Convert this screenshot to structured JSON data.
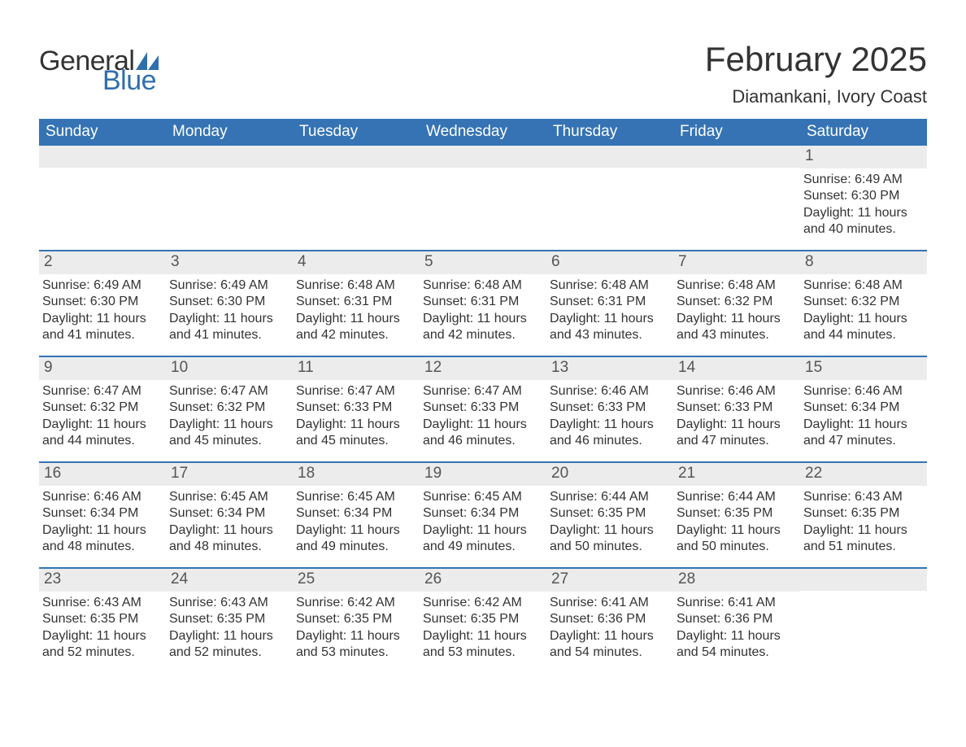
{
  "logo": {
    "word1": "General",
    "word2": "Blue",
    "word1_color": "#333333",
    "word2_color": "#2f6fad",
    "icon_color": "#2f6fad"
  },
  "title": "February 2025",
  "location": "Diamankani, Ivory Coast",
  "colors": {
    "header_bg": "#3573b4",
    "header_text": "#ffffff",
    "daynum_bg": "#ececec",
    "daynum_text": "#555555",
    "body_text": "#333333",
    "week_border": "#3573b4",
    "page_bg": "#ffffff"
  },
  "fonts": {
    "title_size": 42,
    "location_size": 22,
    "weekday_size": 19,
    "daynum_size": 19,
    "body_size": 16
  },
  "weekdays": [
    "Sunday",
    "Monday",
    "Tuesday",
    "Wednesday",
    "Thursday",
    "Friday",
    "Saturday"
  ],
  "weeks": [
    [
      null,
      null,
      null,
      null,
      null,
      null,
      {
        "n": "1",
        "sunrise": "Sunrise: 6:49 AM",
        "sunset": "Sunset: 6:30 PM",
        "daylight": "Daylight: 11 hours and 40 minutes."
      }
    ],
    [
      {
        "n": "2",
        "sunrise": "Sunrise: 6:49 AM",
        "sunset": "Sunset: 6:30 PM",
        "daylight": "Daylight: 11 hours and 41 minutes."
      },
      {
        "n": "3",
        "sunrise": "Sunrise: 6:49 AM",
        "sunset": "Sunset: 6:30 PM",
        "daylight": "Daylight: 11 hours and 41 minutes."
      },
      {
        "n": "4",
        "sunrise": "Sunrise: 6:48 AM",
        "sunset": "Sunset: 6:31 PM",
        "daylight": "Daylight: 11 hours and 42 minutes."
      },
      {
        "n": "5",
        "sunrise": "Sunrise: 6:48 AM",
        "sunset": "Sunset: 6:31 PM",
        "daylight": "Daylight: 11 hours and 42 minutes."
      },
      {
        "n": "6",
        "sunrise": "Sunrise: 6:48 AM",
        "sunset": "Sunset: 6:31 PM",
        "daylight": "Daylight: 11 hours and 43 minutes."
      },
      {
        "n": "7",
        "sunrise": "Sunrise: 6:48 AM",
        "sunset": "Sunset: 6:32 PM",
        "daylight": "Daylight: 11 hours and 43 minutes."
      },
      {
        "n": "8",
        "sunrise": "Sunrise: 6:48 AM",
        "sunset": "Sunset: 6:32 PM",
        "daylight": "Daylight: 11 hours and 44 minutes."
      }
    ],
    [
      {
        "n": "9",
        "sunrise": "Sunrise: 6:47 AM",
        "sunset": "Sunset: 6:32 PM",
        "daylight": "Daylight: 11 hours and 44 minutes."
      },
      {
        "n": "10",
        "sunrise": "Sunrise: 6:47 AM",
        "sunset": "Sunset: 6:32 PM",
        "daylight": "Daylight: 11 hours and 45 minutes."
      },
      {
        "n": "11",
        "sunrise": "Sunrise: 6:47 AM",
        "sunset": "Sunset: 6:33 PM",
        "daylight": "Daylight: 11 hours and 45 minutes."
      },
      {
        "n": "12",
        "sunrise": "Sunrise: 6:47 AM",
        "sunset": "Sunset: 6:33 PM",
        "daylight": "Daylight: 11 hours and 46 minutes."
      },
      {
        "n": "13",
        "sunrise": "Sunrise: 6:46 AM",
        "sunset": "Sunset: 6:33 PM",
        "daylight": "Daylight: 11 hours and 46 minutes."
      },
      {
        "n": "14",
        "sunrise": "Sunrise: 6:46 AM",
        "sunset": "Sunset: 6:33 PM",
        "daylight": "Daylight: 11 hours and 47 minutes."
      },
      {
        "n": "15",
        "sunrise": "Sunrise: 6:46 AM",
        "sunset": "Sunset: 6:34 PM",
        "daylight": "Daylight: 11 hours and 47 minutes."
      }
    ],
    [
      {
        "n": "16",
        "sunrise": "Sunrise: 6:46 AM",
        "sunset": "Sunset: 6:34 PM",
        "daylight": "Daylight: 11 hours and 48 minutes."
      },
      {
        "n": "17",
        "sunrise": "Sunrise: 6:45 AM",
        "sunset": "Sunset: 6:34 PM",
        "daylight": "Daylight: 11 hours and 48 minutes."
      },
      {
        "n": "18",
        "sunrise": "Sunrise: 6:45 AM",
        "sunset": "Sunset: 6:34 PM",
        "daylight": "Daylight: 11 hours and 49 minutes."
      },
      {
        "n": "19",
        "sunrise": "Sunrise: 6:45 AM",
        "sunset": "Sunset: 6:34 PM",
        "daylight": "Daylight: 11 hours and 49 minutes."
      },
      {
        "n": "20",
        "sunrise": "Sunrise: 6:44 AM",
        "sunset": "Sunset: 6:35 PM",
        "daylight": "Daylight: 11 hours and 50 minutes."
      },
      {
        "n": "21",
        "sunrise": "Sunrise: 6:44 AM",
        "sunset": "Sunset: 6:35 PM",
        "daylight": "Daylight: 11 hours and 50 minutes."
      },
      {
        "n": "22",
        "sunrise": "Sunrise: 6:43 AM",
        "sunset": "Sunset: 6:35 PM",
        "daylight": "Daylight: 11 hours and 51 minutes."
      }
    ],
    [
      {
        "n": "23",
        "sunrise": "Sunrise: 6:43 AM",
        "sunset": "Sunset: 6:35 PM",
        "daylight": "Daylight: 11 hours and 52 minutes."
      },
      {
        "n": "24",
        "sunrise": "Sunrise: 6:43 AM",
        "sunset": "Sunset: 6:35 PM",
        "daylight": "Daylight: 11 hours and 52 minutes."
      },
      {
        "n": "25",
        "sunrise": "Sunrise: 6:42 AM",
        "sunset": "Sunset: 6:35 PM",
        "daylight": "Daylight: 11 hours and 53 minutes."
      },
      {
        "n": "26",
        "sunrise": "Sunrise: 6:42 AM",
        "sunset": "Sunset: 6:35 PM",
        "daylight": "Daylight: 11 hours and 53 minutes."
      },
      {
        "n": "27",
        "sunrise": "Sunrise: 6:41 AM",
        "sunset": "Sunset: 6:36 PM",
        "daylight": "Daylight: 11 hours and 54 minutes."
      },
      {
        "n": "28",
        "sunrise": "Sunrise: 6:41 AM",
        "sunset": "Sunset: 6:36 PM",
        "daylight": "Daylight: 11 hours and 54 minutes."
      },
      null
    ]
  ]
}
